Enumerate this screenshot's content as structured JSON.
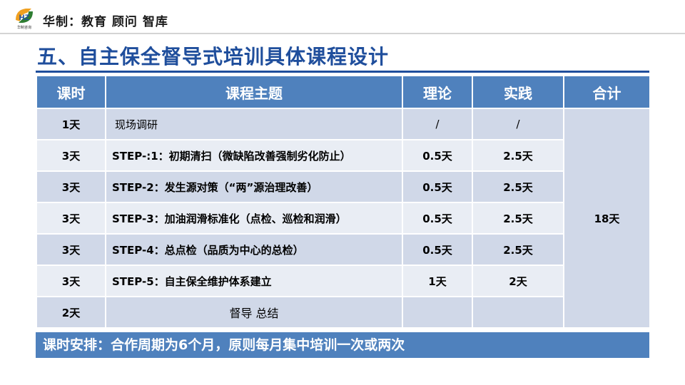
{
  "header": {
    "logo_text": "HZ",
    "logo_caption": "华制咨询",
    "brand": "华制：教育  顾问   智库"
  },
  "title": "五、自主保全督导式培训具体课程设计",
  "table": {
    "headers": [
      "课时",
      "课程主题",
      "理论",
      "实践",
      "合计"
    ],
    "rows": [
      {
        "hours": "1天",
        "topic": "现场调研",
        "theory": "/",
        "practice": "/"
      },
      {
        "hours": "3天",
        "topic": "STEP-:1：初期清扫（微缺陷改善强制劣化防止）",
        "theory": "0.5天",
        "practice": "2.5天"
      },
      {
        "hours": "3天",
        "topic": "STEP-2：发生源对策（“两”源治理改善）",
        "theory": "0.5天",
        "practice": "2.5天"
      },
      {
        "hours": "3天",
        "topic": "STEP-3：加油润滑标准化（点检、巡检和润滑）",
        "theory": "0.5天",
        "practice": "2.5天"
      },
      {
        "hours": "3天",
        "topic": "STEP-4：总点检（品质为中心的总检）",
        "theory": "0.5天",
        "practice": "2.5天"
      },
      {
        "hours": "3天",
        "topic": "STEP-5：自主保全维护体系建立",
        "theory": "1天",
        "practice": "2天"
      },
      {
        "hours": "2天",
        "topic": "督导 总结",
        "theory": "",
        "practice": ""
      }
    ],
    "total": "18天"
  },
  "note": "课时安排：合作周期为6个月，原则每月集中培训一次或两次",
  "colors": {
    "accent": "#1f4e9c",
    "header_bg": "#4f81bd",
    "row_dark": "#d0d8e8",
    "row_light": "#e9edf4"
  }
}
